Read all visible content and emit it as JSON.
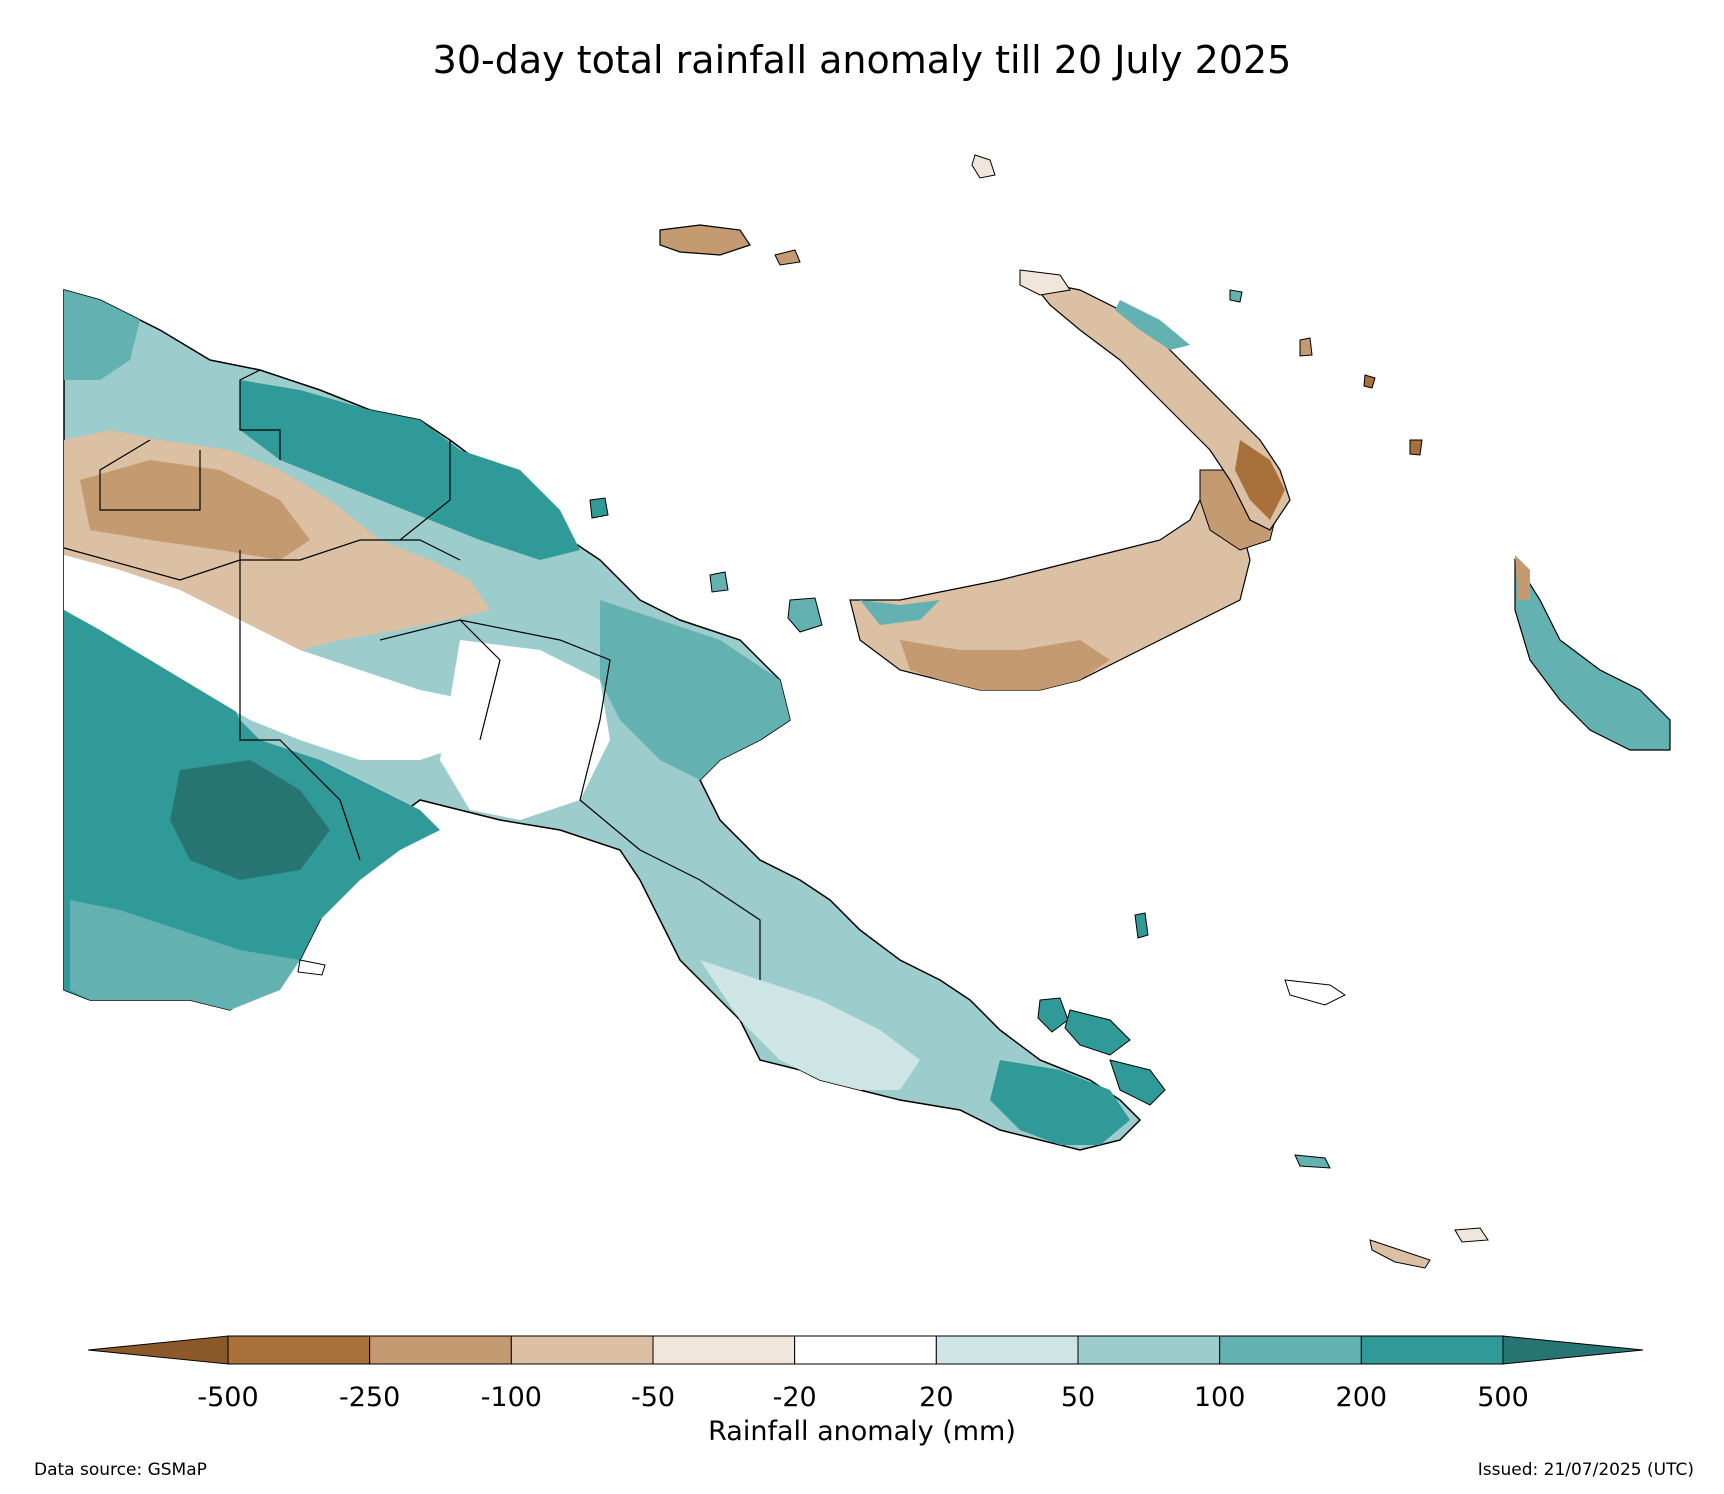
{
  "title": "30-day total rainfall anomaly till 20 July 2025",
  "colorbar": {
    "label": "Rainfall anomaly (mm)",
    "ticks": [
      "-500",
      "-250",
      "-100",
      "-50",
      "-20",
      "20",
      "50",
      "100",
      "200",
      "500"
    ],
    "colors": [
      "#a8703a",
      "#c49a70",
      "#dcc0a4",
      "#f1e6dc",
      "#ffffff",
      "#cde6e5",
      "#9ccccc",
      "#64b1b1",
      "#309a98"
    ],
    "under_color": "#8c5a2a",
    "over_color": "#267572"
  },
  "footer": {
    "data_source": "Data source: GSMaP",
    "issued": "Issued: 21/07/2025 (UTC)"
  },
  "legend_category_colors": {
    "dry_extreme": "#8c5a2a",
    "wet_extreme": "#267572"
  }
}
